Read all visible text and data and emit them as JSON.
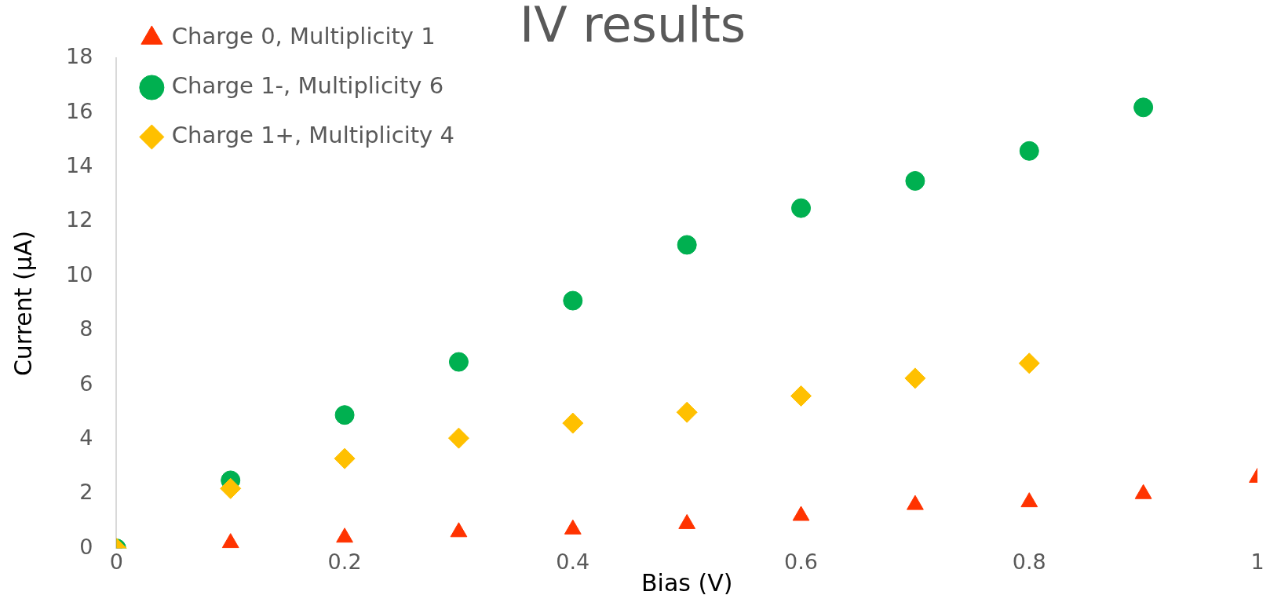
{
  "chart_data": {
    "type": "scatter",
    "title": "IV results",
    "xlabel": "Bias (V)",
    "ylabel": "Current (μA)",
    "xlim": [
      0,
      1
    ],
    "xticks": [
      0,
      0.2,
      0.4,
      0.6,
      0.8,
      1
    ],
    "ylim": [
      0,
      18
    ],
    "yticks": [
      0,
      2,
      4,
      6,
      8,
      10,
      12,
      14,
      16,
      18
    ],
    "grid": false,
    "legend": "top left",
    "series": [
      {
        "name": "Charge 0, Multiplicity 1",
        "color": "#ff3300",
        "marker": "triangle",
        "x": [
          0,
          0.1,
          0.2,
          0.3,
          0.4,
          0.5,
          0.6,
          0.7,
          0.8,
          0.9,
          1
        ],
        "values": [
          0,
          0.2,
          0.4,
          0.6,
          0.7,
          0.9,
          1.2,
          1.6,
          1.7,
          2.0,
          2.6
        ]
      },
      {
        "name": "Charge 1-, Multiplicity 6",
        "color": "#00b050",
        "marker": "circle",
        "x": [
          0,
          0.1,
          0.2,
          0.3,
          0.4,
          0.5,
          0.6,
          0.7,
          0.8,
          0.9
        ],
        "values": [
          0,
          2.5,
          4.9,
          6.85,
          9.1,
          11.15,
          12.5,
          13.5,
          14.6,
          16.2
        ]
      },
      {
        "name": "Charge 1+, Multiplicity 4",
        "color": "#ffc000",
        "marker": "diamond",
        "x": [
          0,
          0.1,
          0.2,
          0.3,
          0.4,
          0.5,
          0.6,
          0.7,
          0.8
        ],
        "values": [
          0,
          2.2,
          3.3,
          4.05,
          4.6,
          5.0,
          5.6,
          6.25,
          6.8
        ]
      }
    ]
  }
}
